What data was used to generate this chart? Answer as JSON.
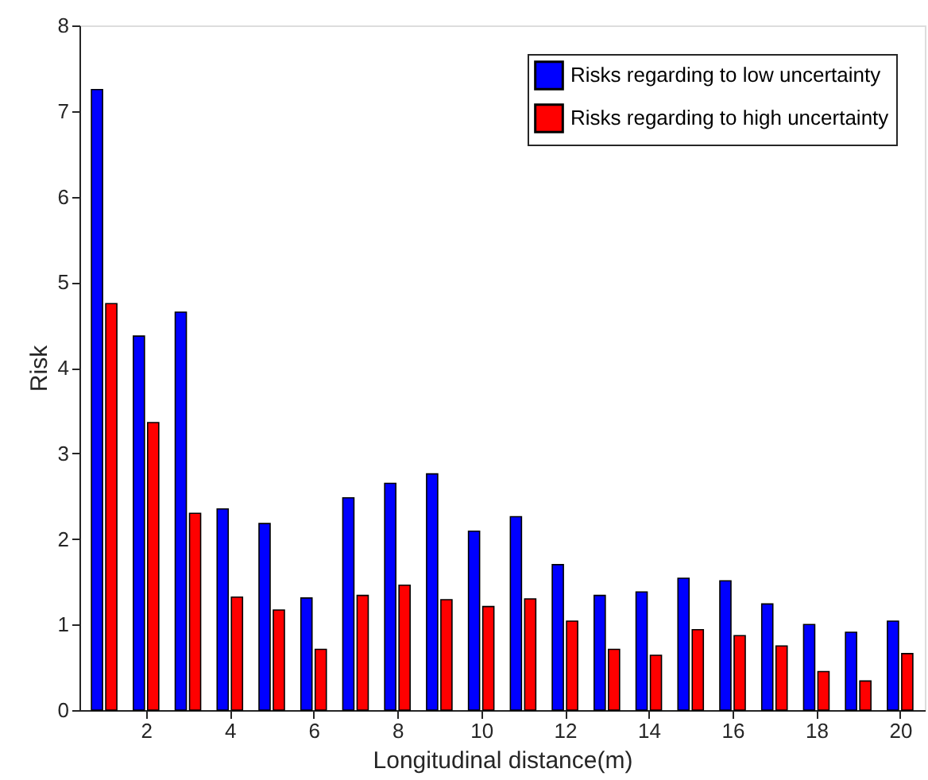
{
  "chart_data": {
    "type": "bar",
    "xlabel": "Longitudinal distance(m)",
    "ylabel": "Risk",
    "x": [
      1,
      2,
      3,
      4,
      5,
      6,
      7,
      8,
      9,
      10,
      11,
      12,
      13,
      14,
      15,
      16,
      17,
      18,
      19,
      20
    ],
    "series": [
      {
        "name": "Risks regarding to low uncertainty",
        "color": "#0000ff",
        "values": [
          7.25,
          4.37,
          4.65,
          2.35,
          2.18,
          1.31,
          2.48,
          2.65,
          2.76,
          2.09,
          2.26,
          1.7,
          1.34,
          1.38,
          1.54,
          1.51,
          1.24,
          1.0,
          0.91,
          1.04
        ]
      },
      {
        "name": "Risks regarding to high uncertainty",
        "color": "#ff0000",
        "values": [
          4.75,
          3.36,
          2.3,
          1.32,
          1.17,
          0.71,
          1.34,
          1.46,
          1.29,
          1.21,
          1.3,
          1.04,
          0.71,
          0.64,
          0.94,
          0.87,
          0.75,
          0.45,
          0.34,
          0.66
        ]
      }
    ],
    "xlim": [
      0.6,
      20.4
    ],
    "xticks": [
      2,
      4,
      6,
      8,
      10,
      12,
      14,
      16,
      18,
      20
    ],
    "ylim": [
      0,
      8
    ],
    "yticks": [
      0,
      1,
      2,
      3,
      4,
      5,
      6,
      7,
      8
    ],
    "grid": false,
    "legend": "top right"
  }
}
